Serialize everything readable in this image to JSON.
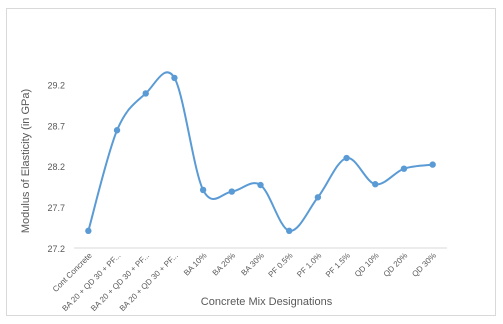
{
  "chart_data": {
    "type": "line",
    "smooth": true,
    "title": "",
    "xlabel": "Concrete Mix Designations",
    "ylabel": "Modulus of Elasticity (in GPa)",
    "ylim": [
      27.2,
      29.45
    ],
    "yticks": [
      27.2,
      27.7,
      28.2,
      28.7,
      29.2
    ],
    "ytick_labels": [
      "27.2",
      "27.7",
      "28.2",
      "28.7",
      "29.2"
    ],
    "grid": false,
    "legend": "none",
    "categories": [
      "Cont Concrete",
      "BA 20 + QD 30 + PF...",
      "BA 20 + QD 30 + PF...",
      "BA 20 + QD 30 + PF...",
      "BA 10%",
      "BA 20%",
      "BA 30%",
      "PF 0.5%",
      "PF 1.0%",
      "PF 1.5%",
      "QD 10%",
      "QD 20%",
      "QD 30%"
    ],
    "series": [
      {
        "values": [
          27.41,
          28.64,
          29.09,
          29.28,
          27.91,
          27.89,
          27.97,
          27.41,
          27.82,
          28.3,
          27.98,
          28.17,
          28.22
        ],
        "color": "#5b9bd5"
      }
    ]
  },
  "colors": {
    "axis": "#d9d9d9",
    "text": "#595959",
    "frame": "#d9d9d9"
  }
}
